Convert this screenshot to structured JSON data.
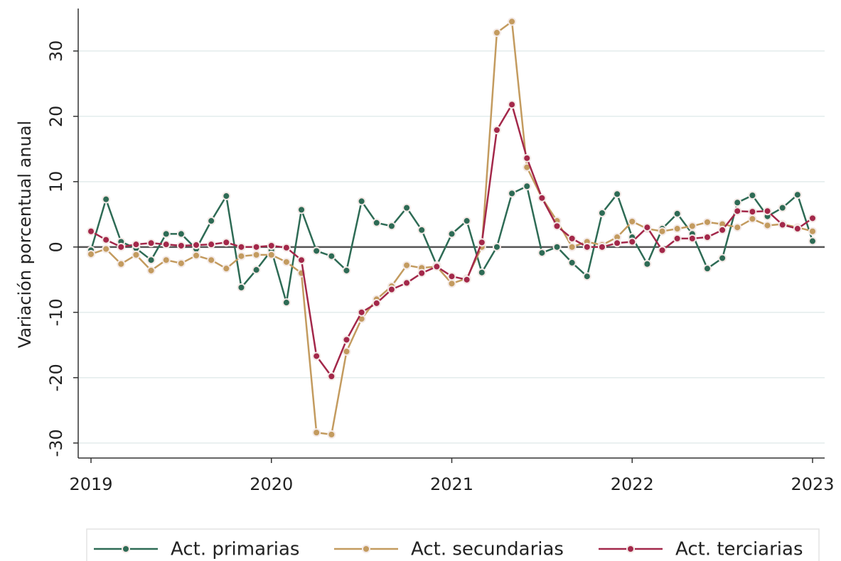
{
  "chart_data": {
    "type": "line",
    "y_label": "Variación porcentual anual",
    "categories": [
      "2019",
      null,
      null,
      null,
      null,
      null,
      null,
      null,
      null,
      null,
      null,
      null,
      "2020",
      null,
      null,
      null,
      null,
      null,
      null,
      null,
      null,
      null,
      null,
      null,
      "2021",
      null,
      null,
      null,
      null,
      null,
      null,
      null,
      null,
      null,
      null,
      null,
      "2022",
      null,
      null,
      null,
      null,
      null,
      null,
      null,
      null,
      null,
      null,
      null,
      "2023"
    ],
    "series": [
      {
        "name": "Act. primarias",
        "color": "#2e6b55",
        "values": [
          -0.5,
          7.3,
          0.8,
          -0.2,
          -2,
          2,
          2,
          -0.3,
          4,
          7.8,
          -6.2,
          -3.5,
          -0.5,
          -8.5,
          5.7,
          -0.6,
          -1.4,
          -3.6,
          7,
          3.7,
          3.2,
          6,
          2.6,
          -2.8,
          2,
          4,
          -3.9,
          0,
          8.2,
          9.3,
          -0.9,
          0,
          -2.4,
          -4.5,
          5.2,
          8.1,
          1.5,
          -2.6,
          2.8,
          5.1,
          2,
          -3.3,
          -1.7,
          6.8,
          7.9,
          4.7,
          6,
          8,
          0.9
        ]
      },
      {
        "name": "Act. secundarias",
        "color": "#c39b5f",
        "values": [
          -1.1,
          -0.3,
          -2.6,
          -1.2,
          -3.6,
          -2,
          -2.5,
          -1.3,
          -2,
          -3.3,
          -1.4,
          -1.2,
          -1.2,
          -2.3,
          -4,
          -28.4,
          -28.7,
          -16,
          -11,
          -8,
          -6,
          -2.8,
          -3.2,
          -3,
          -5.6,
          -4.8,
          0,
          32.8,
          34.5,
          12.2,
          7.5,
          4,
          0,
          0.8,
          0.3,
          1.5,
          3.9,
          2.8,
          2.4,
          2.8,
          3.2,
          3.8,
          3.5,
          3,
          4.3,
          3.3,
          3.5,
          3,
          2.4
        ]
      },
      {
        "name": "Act. terciarias",
        "color": "#a3284a",
        "values": [
          2.4,
          1.1,
          0,
          0.4,
          0.6,
          0.4,
          0.2,
          0.3,
          0.4,
          0.7,
          0,
          0,
          0.2,
          -0.1,
          -2,
          -16.7,
          -19.8,
          -14.2,
          -10,
          -8.6,
          -6.5,
          -5.5,
          -4,
          -3,
          -4.5,
          -5,
          0.7,
          17.9,
          21.8,
          13.6,
          7.5,
          3.2,
          1.3,
          0,
          0,
          0.6,
          0.8,
          3,
          -0.5,
          1.3,
          1.3,
          1.5,
          2.6,
          5.5,
          5.4,
          5.5,
          3.4,
          2.8,
          4.4
        ]
      }
    ],
    "ylim": [
      -32.3,
      36.5
    ],
    "yticks": [
      -30,
      -20,
      -10,
      0,
      10,
      20,
      30
    ],
    "grid": true,
    "legend": "bottom"
  }
}
